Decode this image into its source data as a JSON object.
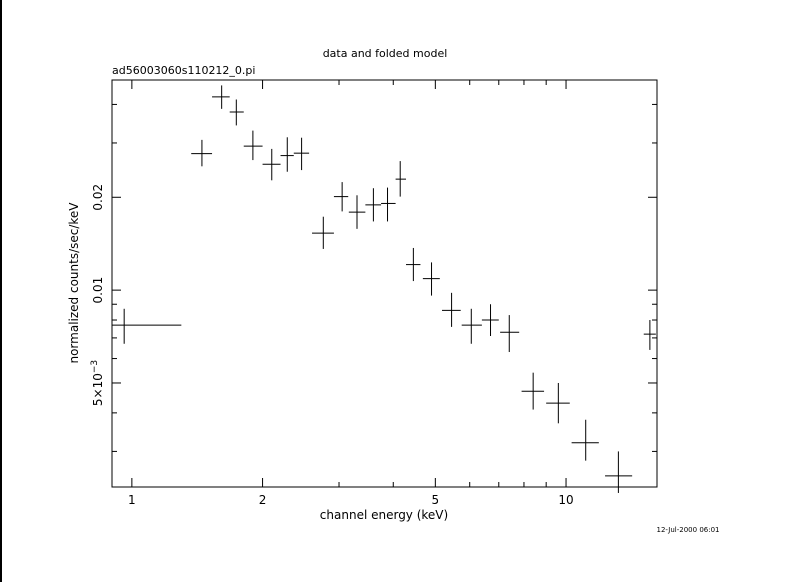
{
  "chart_data": {
    "type": "scatter",
    "title": "data and folded model",
    "subtitle": "ad56003060s110212_0.pi",
    "xlabel": "channel energy (keV)",
    "ylabel": "normalized counts/sec/keV",
    "xscale": "log",
    "yscale": "log",
    "xlim": [
      0.9,
      16.2
    ],
    "ylim": [
      0.0023,
      0.048
    ],
    "x_ticks": [
      {
        "value": 1,
        "label": "1"
      },
      {
        "value": 2,
        "label": "2"
      },
      {
        "value": 5,
        "label": "5"
      },
      {
        "value": 10,
        "label": "10"
      }
    ],
    "y_ticks": [
      {
        "value": 0.005,
        "label": "5×10⁻³",
        "base": "5×10",
        "exp": "−3"
      },
      {
        "value": 0.01,
        "label": "0.01"
      },
      {
        "value": 0.02,
        "label": "0.02"
      }
    ],
    "y_minor_ticks": [
      0.003,
      0.004,
      0.006,
      0.007,
      0.008,
      0.009,
      0.03,
      0.04
    ],
    "grid": false,
    "series": [
      {
        "points": [
          {
            "x": 0.96,
            "xlo": 0.9,
            "xhi": 1.3,
            "y": 0.0077,
            "ylo": 0.0067,
            "yhi": 0.0087
          },
          {
            "x": 1.45,
            "xlo": 1.37,
            "xhi": 1.53,
            "y": 0.0277,
            "ylo": 0.0252,
            "yhi": 0.0307
          },
          {
            "x": 1.61,
            "xlo": 1.53,
            "xhi": 1.68,
            "y": 0.0423,
            "ylo": 0.0387,
            "yhi": 0.0461
          },
          {
            "x": 1.74,
            "xlo": 1.68,
            "xhi": 1.81,
            "y": 0.0378,
            "ylo": 0.0342,
            "yhi": 0.0415
          },
          {
            "x": 1.9,
            "xlo": 1.81,
            "xhi": 2.0,
            "y": 0.0293,
            "ylo": 0.0264,
            "yhi": 0.0329
          },
          {
            "x": 2.1,
            "xlo": 2.0,
            "xhi": 2.2,
            "y": 0.0256,
            "ylo": 0.0227,
            "yhi": 0.0287
          },
          {
            "x": 2.28,
            "xlo": 2.2,
            "xhi": 2.36,
            "y": 0.0273,
            "ylo": 0.0242,
            "yhi": 0.0313
          },
          {
            "x": 2.46,
            "xlo": 2.36,
            "xhi": 2.56,
            "y": 0.0278,
            "ylo": 0.0245,
            "yhi": 0.0312
          },
          {
            "x": 2.76,
            "xlo": 2.6,
            "xhi": 2.92,
            "y": 0.0153,
            "ylo": 0.0136,
            "yhi": 0.0173
          },
          {
            "x": 3.05,
            "xlo": 2.92,
            "xhi": 3.15,
            "y": 0.0201,
            "ylo": 0.018,
            "yhi": 0.0224
          },
          {
            "x": 3.3,
            "xlo": 3.16,
            "xhi": 3.45,
            "y": 0.0179,
            "ylo": 0.0158,
            "yhi": 0.0203
          },
          {
            "x": 3.6,
            "xlo": 3.45,
            "xhi": 3.75,
            "y": 0.0189,
            "ylo": 0.0167,
            "yhi": 0.0214
          },
          {
            "x": 3.88,
            "xlo": 3.75,
            "xhi": 4.05,
            "y": 0.0191,
            "ylo": 0.0167,
            "yhi": 0.0215
          },
          {
            "x": 4.15,
            "xlo": 4.05,
            "xhi": 4.28,
            "y": 0.0229,
            "ylo": 0.0201,
            "yhi": 0.0262
          },
          {
            "x": 4.45,
            "xlo": 4.28,
            "xhi": 4.62,
            "y": 0.0121,
            "ylo": 0.0107,
            "yhi": 0.0137
          },
          {
            "x": 4.9,
            "xlo": 4.68,
            "xhi": 5.12,
            "y": 0.0109,
            "ylo": 0.0096,
            "yhi": 0.0123
          },
          {
            "x": 5.45,
            "xlo": 5.18,
            "xhi": 5.72,
            "y": 0.0086,
            "ylo": 0.0076,
            "yhi": 0.0098
          },
          {
            "x": 6.05,
            "xlo": 5.75,
            "xhi": 6.4,
            "y": 0.0077,
            "ylo": 0.0067,
            "yhi": 0.0087
          },
          {
            "x": 6.7,
            "xlo": 6.4,
            "xhi": 7.0,
            "y": 0.008,
            "ylo": 0.0071,
            "yhi": 0.009
          },
          {
            "x": 7.4,
            "xlo": 7.05,
            "xhi": 7.8,
            "y": 0.0073,
            "ylo": 0.0063,
            "yhi": 0.0083
          },
          {
            "x": 8.4,
            "xlo": 7.9,
            "xhi": 8.9,
            "y": 0.0047,
            "ylo": 0.0041,
            "yhi": 0.0054
          },
          {
            "x": 9.6,
            "xlo": 9.0,
            "xhi": 10.2,
            "y": 0.0043,
            "ylo": 0.0037,
            "yhi": 0.005
          },
          {
            "x": 11.1,
            "xlo": 10.3,
            "xhi": 11.9,
            "y": 0.0032,
            "ylo": 0.0028,
            "yhi": 0.0038
          },
          {
            "x": 13.2,
            "xlo": 12.3,
            "xhi": 14.2,
            "y": 0.0025,
            "ylo": 0.0022,
            "yhi": 0.003
          },
          {
            "x": 15.6,
            "xlo": 15.1,
            "xhi": 16.1,
            "y": 0.0072,
            "ylo": 0.0064,
            "yhi": 0.008
          }
        ]
      }
    ]
  },
  "timestamp": "12-Jul-2000 06:01",
  "colors": {
    "ink": "#000000",
    "background": "#ffffff"
  }
}
